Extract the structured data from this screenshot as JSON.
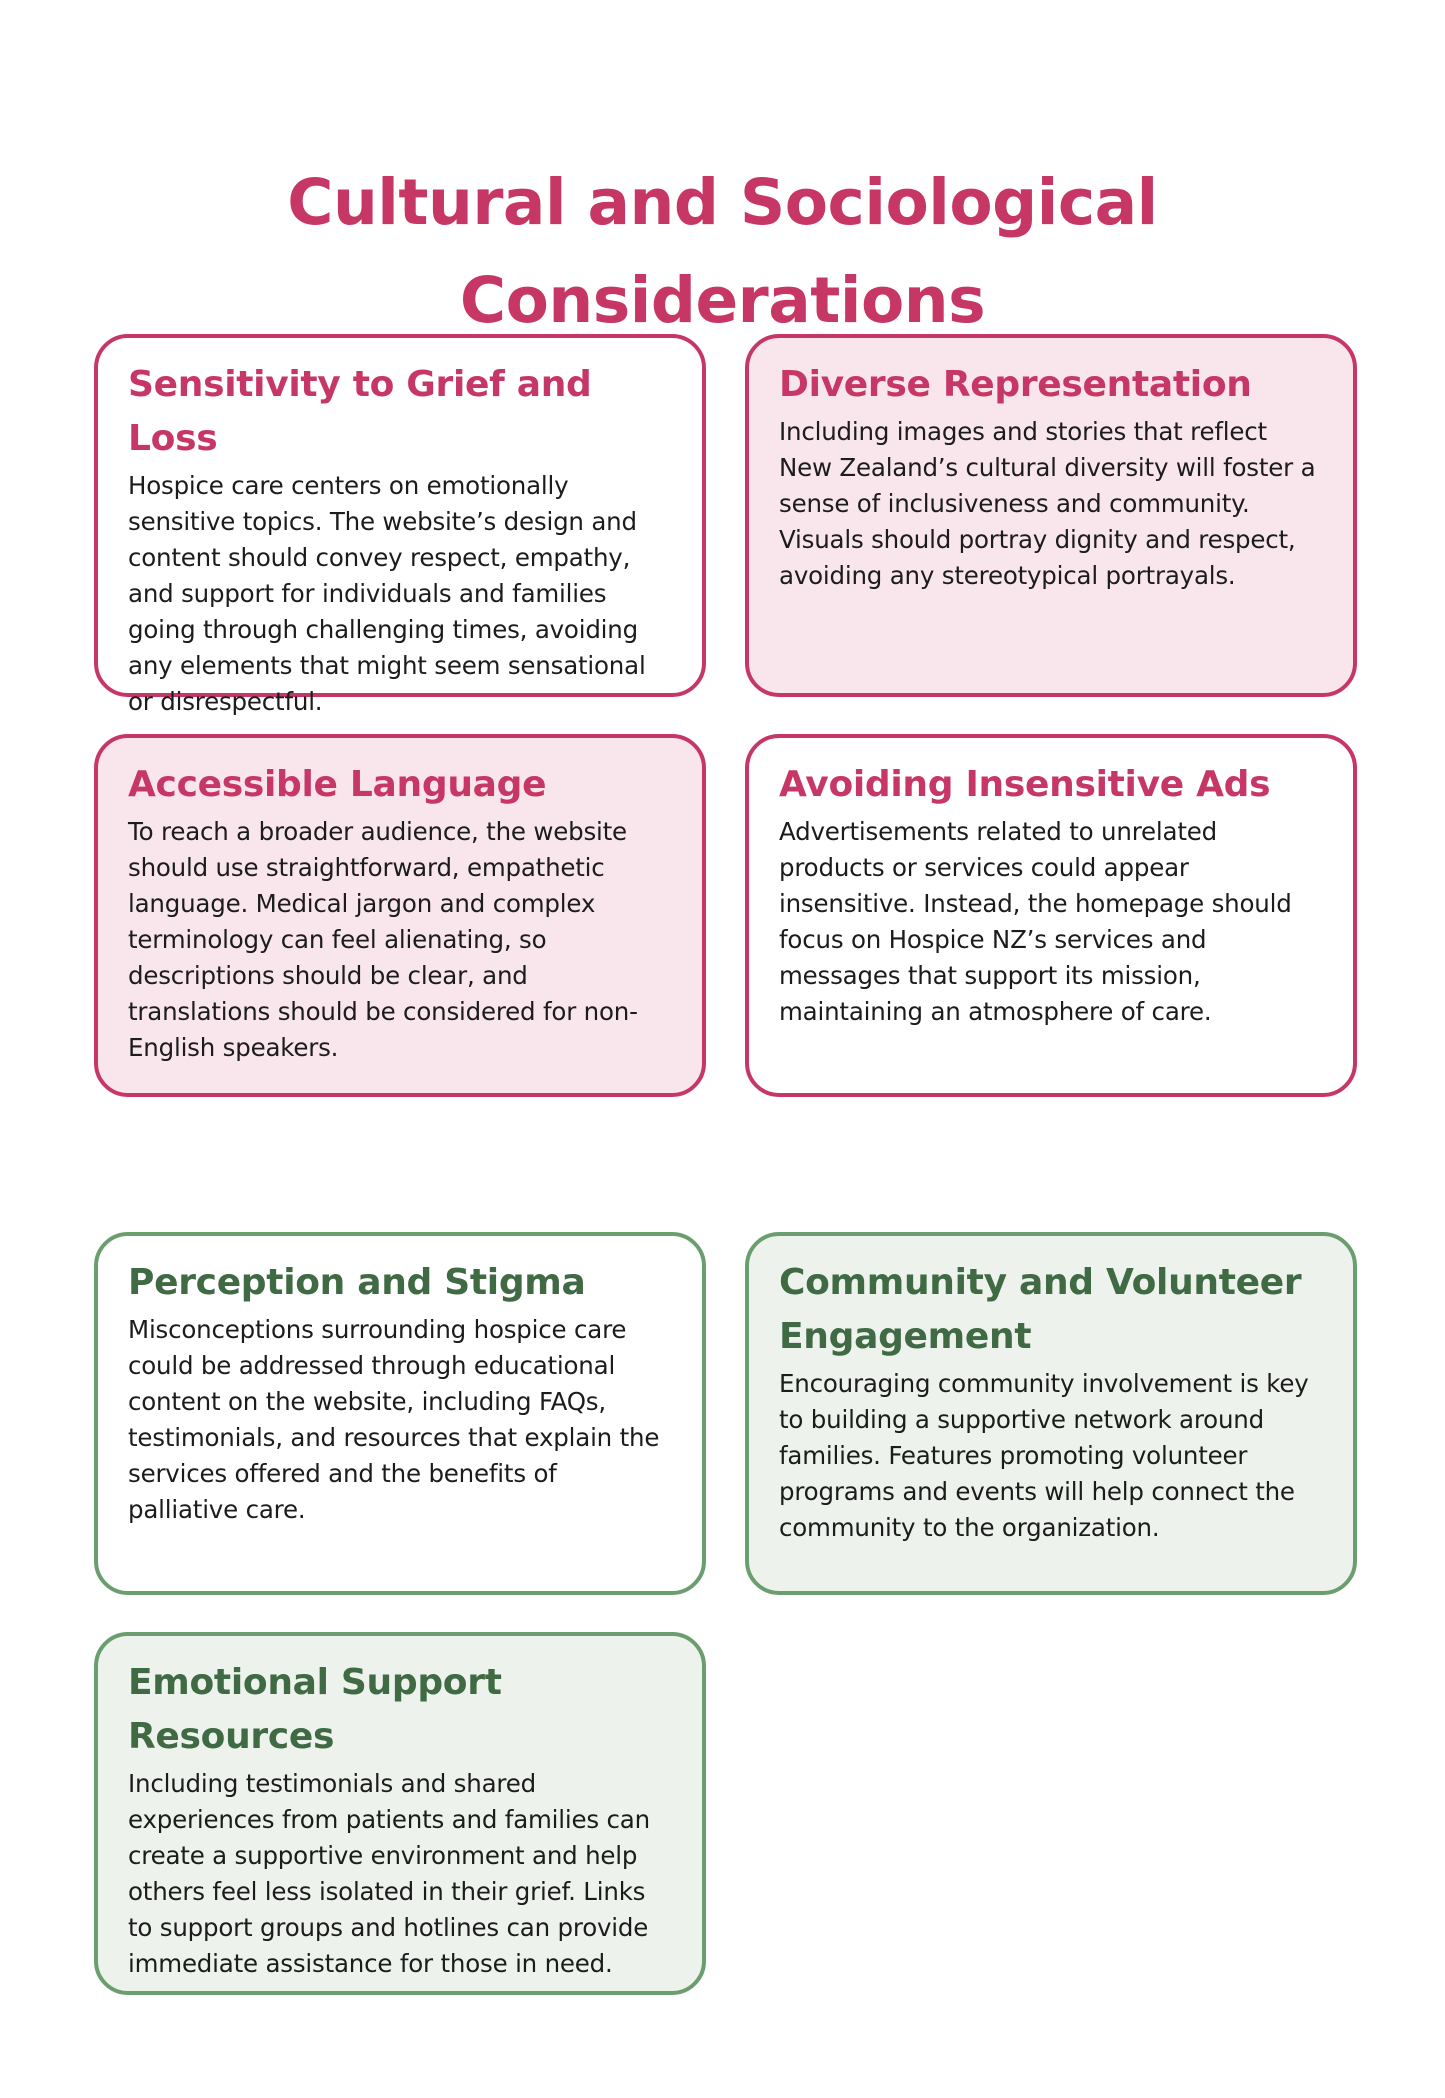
{
  "title": {
    "line1": "Cultural and Sociological",
    "line2": "Considerations"
  },
  "colors": {
    "pink_accent": "#c73766",
    "pink_tint": "#f8e6ec",
    "green_accent": "#6b9e6e",
    "green_title": "#3f6a43",
    "green_tint": "#edf3ec"
  },
  "cards": [
    {
      "title": "Sensitivity to Grief and Loss",
      "body": "Hospice care centers on emotionally sensitive topics. The website’s design and content should convey respect, empathy, and support for individuals and families going through challenging times, avoiding any elements that might seem sensational or disrespectful."
    },
    {
      "title": "Diverse Representation",
      "body": "Including images and stories that reflect New Zealand’s cultural diversity will foster a sense of inclusiveness and community. Visuals should portray dignity and respect, avoiding any stereotypical portrayals."
    },
    {
      "title": "Accessible Language",
      "body": "To reach a broader audience, the website should use straightforward, empathetic language. Medical jargon and complex terminology can feel alienating, so descriptions should be clear, and translations should be considered for non-English speakers."
    },
    {
      "title": "Avoiding Insensitive Ads",
      "body": "Advertisements related to unrelated products or services could appear insensitive. Instead, the homepage should focus on Hospice NZ’s services and messages that support its mission, maintaining an atmosphere of care."
    },
    {
      "title": "Perception and Stigma",
      "body": "Misconceptions surrounding hospice care could be addressed through educational content on the website, including FAQs, testimonials, and resources that explain the services offered and the benefits of palliative care."
    },
    {
      "title": "Community and Volunteer Engagement",
      "body": "Encouraging community involvement is key to building a supportive network around families. Features promoting volunteer programs and events will help connect the community to the organization."
    },
    {
      "title": "Emotional Support Resources",
      "body": "Including testimonials and shared experiences from patients and families can create a supportive environment and help others feel less isolated in their grief. Links to support groups and hotlines can provide immediate assistance for those in need."
    }
  ]
}
